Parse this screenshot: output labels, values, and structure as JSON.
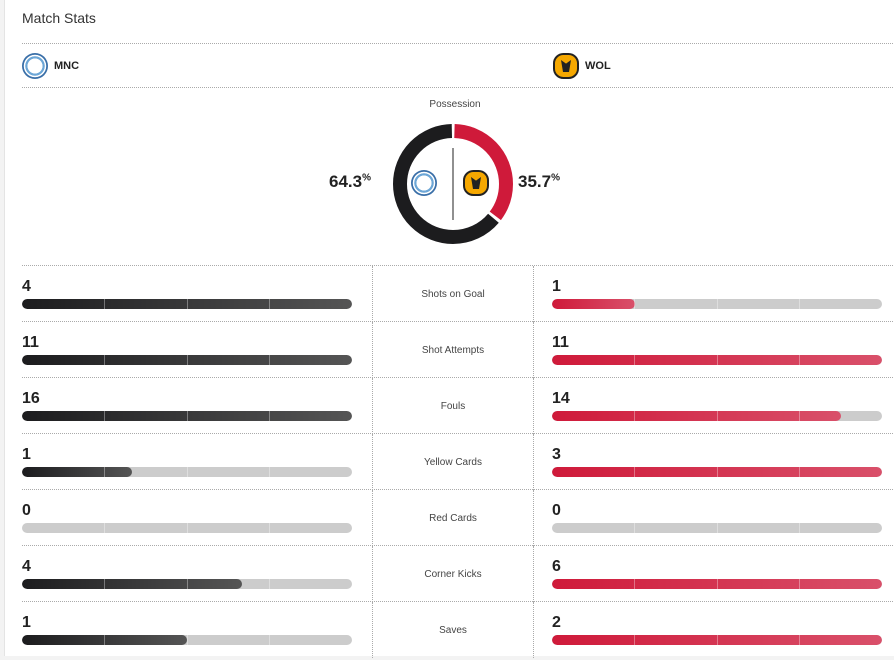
{
  "title": "Match Stats",
  "home": {
    "abbr": "MNC",
    "possession": "64.3",
    "color": "#1c1c1e"
  },
  "away": {
    "abbr": "WOL",
    "possession": "35.7",
    "color": "#cf1a3a"
  },
  "possession_label": "Possession",
  "percent_sign": "%",
  "stats": [
    {
      "label": "Shots on Goal",
      "home": 4,
      "away": 1
    },
    {
      "label": "Shot Attempts",
      "home": 11,
      "away": 11
    },
    {
      "label": "Fouls",
      "home": 16,
      "away": 14
    },
    {
      "label": "Yellow Cards",
      "home": 1,
      "away": 3
    },
    {
      "label": "Red Cards",
      "home": 0,
      "away": 0
    },
    {
      "label": "Corner Kicks",
      "home": 4,
      "away": 6
    },
    {
      "label": "Saves",
      "home": 1,
      "away": 2
    }
  ]
}
